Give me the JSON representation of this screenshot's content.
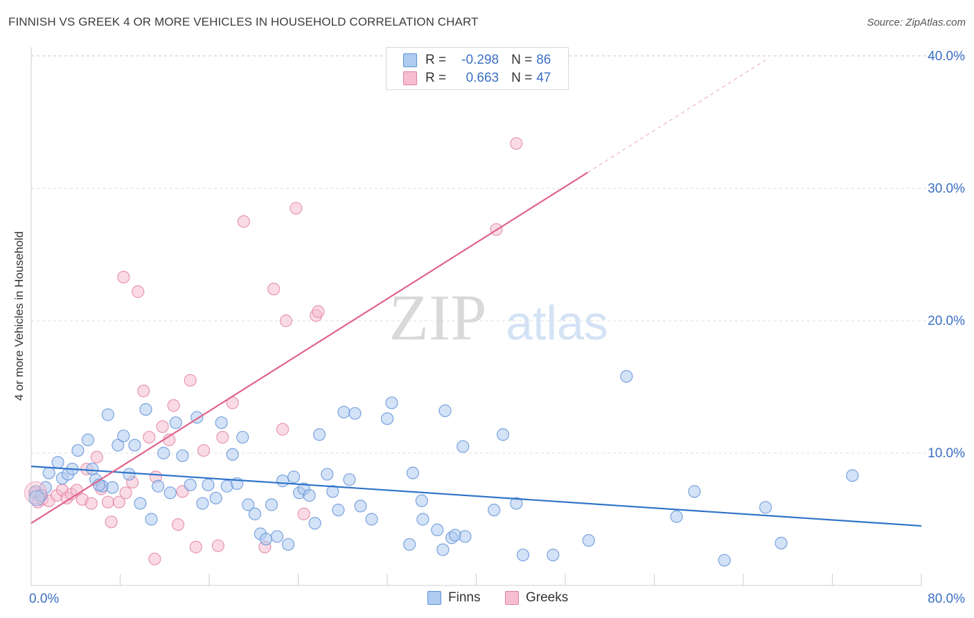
{
  "header": {
    "title": "FINNISH VS GREEK 4 OR MORE VEHICLES IN HOUSEHOLD CORRELATION CHART",
    "source": "Source: ZipAtlas.com"
  },
  "watermark": {
    "zip": "ZIP",
    "atlas": "atlas"
  },
  "legend": {
    "r_label": "R =",
    "n_label": "N =",
    "finns": {
      "r": "-0.298",
      "n": "86"
    },
    "greeks": {
      "r": "0.663",
      "n": "47"
    }
  },
  "colors": {
    "finns_fill": "#aecbf0",
    "finns_stroke": "#5d8fd6",
    "finns_line": "#2f73c9",
    "greeks_fill": "#f6bed0",
    "greeks_stroke": "#e07fa0",
    "greeks_line": "#e0628c",
    "tick_label": "#3b6fc4"
  },
  "chart_data": {
    "type": "scatter",
    "title": "FINNISH VS GREEK 4 OR MORE VEHICLES IN HOUSEHOLD CORRELATION CHART",
    "xlabel": "",
    "ylabel": "4 or more Vehicles in Household",
    "xlim": [
      0,
      80
    ],
    "ylim": [
      0,
      40
    ],
    "x_tick_labels": [
      "0.0%",
      "80.0%"
    ],
    "y_ticks": [
      10,
      20,
      30,
      40
    ],
    "y_tick_labels": [
      "10.0%",
      "20.0%",
      "30.0%",
      "40.0%"
    ],
    "grid": true,
    "legend_position": "top-center",
    "bottom_legend": [
      "Finns",
      "Greeks"
    ],
    "series": [
      {
        "name": "Finns",
        "trend": {
          "x0": 0,
          "y0": 9.0,
          "x1": 80,
          "y1": 4.5
        },
        "points": [
          [
            0.4,
            7.1
          ],
          [
            1.3,
            7.4
          ],
          [
            1.6,
            8.5
          ],
          [
            2.4,
            9.3
          ],
          [
            2.8,
            8.1
          ],
          [
            3.3,
            8.4
          ],
          [
            3.7,
            8.8
          ],
          [
            4.2,
            10.2
          ],
          [
            5.1,
            11.0
          ],
          [
            5.5,
            8.8
          ],
          [
            5.8,
            8.0
          ],
          [
            6.4,
            7.5
          ],
          [
            6.9,
            12.9
          ],
          [
            7.3,
            7.4
          ],
          [
            7.8,
            10.6
          ],
          [
            8.3,
            11.3
          ],
          [
            8.8,
            8.4
          ],
          [
            9.3,
            10.6
          ],
          [
            9.8,
            6.2
          ],
          [
            10.3,
            13.3
          ],
          [
            10.8,
            5.0
          ],
          [
            11.4,
            7.5
          ],
          [
            11.9,
            10.0
          ],
          [
            12.5,
            7.0
          ],
          [
            13.0,
            12.3
          ],
          [
            13.6,
            9.8
          ],
          [
            14.3,
            7.6
          ],
          [
            14.9,
            12.7
          ],
          [
            15.4,
            6.2
          ],
          [
            15.9,
            7.6
          ],
          [
            16.6,
            6.6
          ],
          [
            17.1,
            12.3
          ],
          [
            17.6,
            7.5
          ],
          [
            18.1,
            9.9
          ],
          [
            18.5,
            7.7
          ],
          [
            19.0,
            11.2
          ],
          [
            19.5,
            6.1
          ],
          [
            20.1,
            5.4
          ],
          [
            20.6,
            3.9
          ],
          [
            21.1,
            3.5
          ],
          [
            21.6,
            6.1
          ],
          [
            22.1,
            3.7
          ],
          [
            22.6,
            7.9
          ],
          [
            23.1,
            3.1
          ],
          [
            23.6,
            8.2
          ],
          [
            24.1,
            7.0
          ],
          [
            24.5,
            7.3
          ],
          [
            25.0,
            6.8
          ],
          [
            25.5,
            4.7
          ],
          [
            25.9,
            11.4
          ],
          [
            26.6,
            8.4
          ],
          [
            27.1,
            7.1
          ],
          [
            27.6,
            5.7
          ],
          [
            28.1,
            13.1
          ],
          [
            28.6,
            8.0
          ],
          [
            29.1,
            13.0
          ],
          [
            29.6,
            6.0
          ],
          [
            30.6,
            5.0
          ],
          [
            32.0,
            12.6
          ],
          [
            32.4,
            13.8
          ],
          [
            34.0,
            3.1
          ],
          [
            34.3,
            8.5
          ],
          [
            35.1,
            6.4
          ],
          [
            35.2,
            5.0
          ],
          [
            36.5,
            4.2
          ],
          [
            37.0,
            2.7
          ],
          [
            37.2,
            13.2
          ],
          [
            37.8,
            3.6
          ],
          [
            38.1,
            3.8
          ],
          [
            38.8,
            10.5
          ],
          [
            39.0,
            3.7
          ],
          [
            41.6,
            5.7
          ],
          [
            42.4,
            11.4
          ],
          [
            43.6,
            6.2
          ],
          [
            44.2,
            2.3
          ],
          [
            46.9,
            2.3
          ],
          [
            50.1,
            3.4
          ],
          [
            53.5,
            15.8
          ],
          [
            58.0,
            5.2
          ],
          [
            59.6,
            7.1
          ],
          [
            62.3,
            1.9
          ],
          [
            66.0,
            5.9
          ],
          [
            67.4,
            3.2
          ],
          [
            73.8,
            8.3
          ],
          [
            0.9,
            6.8
          ],
          [
            6.1,
            7.6
          ]
        ]
      },
      {
        "name": "Greeks",
        "trend": {
          "x0": 0,
          "y0": 4.7,
          "x1": 50,
          "y1": 31.2,
          "dash_to_x": 66,
          "dash_to_y": 39.7
        },
        "points": [
          [
            0.3,
            7.0
          ],
          [
            0.6,
            6.3
          ],
          [
            1.0,
            6.5
          ],
          [
            1.6,
            6.4
          ],
          [
            2.3,
            6.8
          ],
          [
            2.8,
            7.2
          ],
          [
            3.2,
            6.6
          ],
          [
            3.6,
            6.9
          ],
          [
            4.1,
            7.2
          ],
          [
            4.6,
            6.5
          ],
          [
            5.0,
            8.8
          ],
          [
            5.4,
            6.2
          ],
          [
            5.9,
            9.7
          ],
          [
            6.3,
            7.3
          ],
          [
            6.9,
            6.3
          ],
          [
            7.2,
            4.8
          ],
          [
            7.9,
            6.3
          ],
          [
            8.3,
            23.3
          ],
          [
            8.5,
            7.0
          ],
          [
            9.1,
            7.8
          ],
          [
            9.6,
            22.2
          ],
          [
            10.1,
            14.7
          ],
          [
            10.6,
            11.2
          ],
          [
            11.1,
            2.0
          ],
          [
            11.2,
            8.2
          ],
          [
            11.8,
            12.0
          ],
          [
            12.4,
            11.0
          ],
          [
            12.8,
            13.6
          ],
          [
            13.2,
            4.6
          ],
          [
            13.6,
            7.1
          ],
          [
            14.3,
            15.5
          ],
          [
            14.8,
            2.9
          ],
          [
            15.5,
            10.2
          ],
          [
            16.8,
            3.0
          ],
          [
            17.2,
            11.2
          ],
          [
            18.1,
            13.8
          ],
          [
            19.1,
            27.5
          ],
          [
            21.0,
            2.9
          ],
          [
            21.8,
            22.4
          ],
          [
            22.6,
            11.8
          ],
          [
            22.9,
            20.0
          ],
          [
            23.8,
            28.5
          ],
          [
            24.5,
            5.4
          ],
          [
            25.6,
            20.4
          ],
          [
            25.8,
            20.7
          ],
          [
            41.8,
            26.9
          ],
          [
            43.6,
            33.4
          ]
        ]
      }
    ]
  }
}
